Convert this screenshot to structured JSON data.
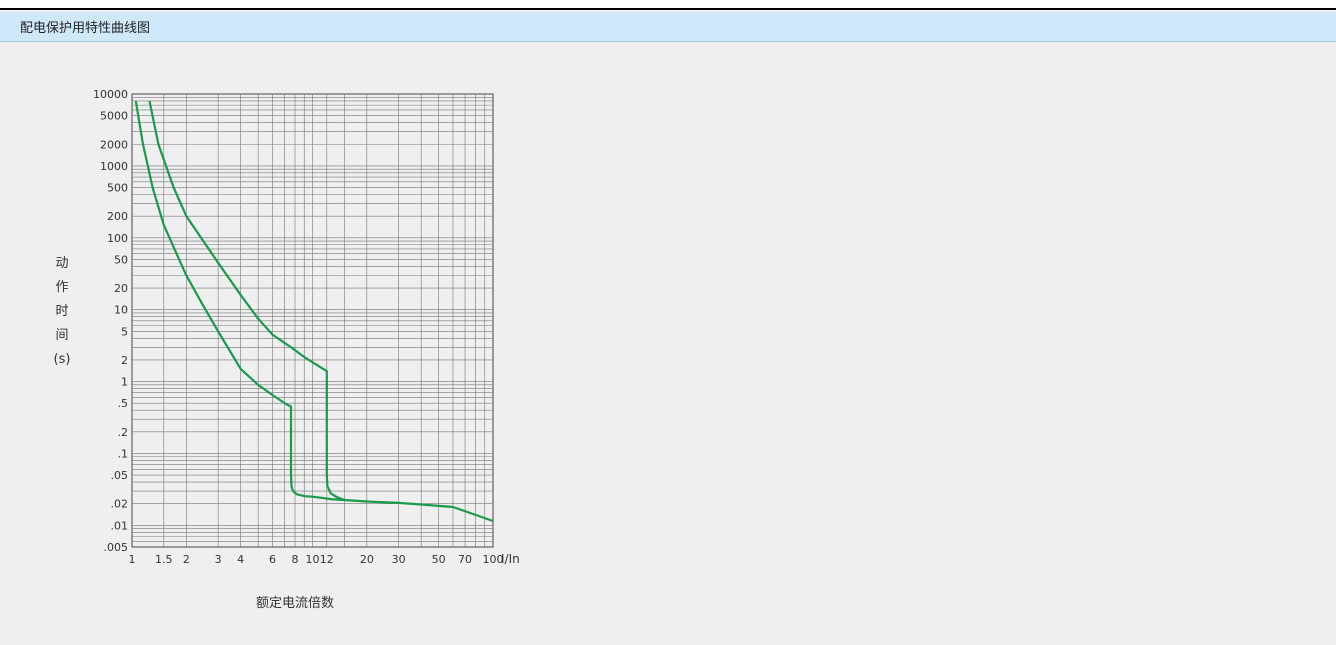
{
  "header": {
    "title": "配电保护用特性曲线图"
  },
  "chart_data": {
    "type": "line",
    "title": "配电保护用特性曲线图",
    "xlabel": "额定电流倍数",
    "ylabel_chars": [
      "动",
      "作",
      "时",
      "间",
      "(s)"
    ],
    "x_unit_label": "I/In",
    "x_scale": "log",
    "y_scale": "log",
    "xlim": [
      1,
      100
    ],
    "ylim": [
      0.005,
      10000
    ],
    "x_ticks": [
      1,
      1.5,
      2,
      3,
      4,
      6,
      8,
      10,
      12,
      20,
      30,
      50,
      70,
      100
    ],
    "x_tick_labels": [
      "1",
      "1.5",
      "2",
      "3",
      "4",
      "6",
      "8",
      "10",
      "12",
      "20",
      "30",
      "50",
      "70",
      "100"
    ],
    "y_ticks": [
      10000,
      5000,
      2000,
      1000,
      500,
      200,
      100,
      50,
      20,
      10,
      5,
      2,
      1,
      0.5,
      0.2,
      0.1,
      0.05,
      0.02,
      0.01,
      0.005
    ],
    "y_tick_labels": [
      "10000",
      "5000",
      "2000",
      "1000",
      "500",
      "200",
      "100",
      "50",
      "20",
      "10",
      "5",
      "2",
      "1",
      ".5",
      ".2",
      ".1",
      ".05",
      ".02",
      ".01",
      ".005"
    ],
    "grid": true,
    "line_color": "#1a9a4a",
    "series": [
      {
        "x": [
          1.05,
          1.15,
          1.3,
          1.5,
          2,
          2.5,
          3,
          4,
          5,
          6,
          7.2,
          7.6,
          7.6,
          7.65,
          7.8,
          8.2,
          9,
          10,
          13,
          15,
          20,
          30,
          40,
          60,
          100
        ],
        "y": [
          8000,
          2000,
          500,
          150,
          30,
          11,
          5,
          1.5,
          0.9,
          0.65,
          0.48,
          0.45,
          0.05,
          0.035,
          0.03,
          0.027,
          0.0255,
          0.025,
          0.023,
          0.0225,
          0.0215,
          0.0205,
          0.0195,
          0.018,
          0.0115
        ]
      },
      {
        "x": [
          1.25,
          1.4,
          1.7,
          2,
          3,
          4,
          5,
          6,
          7.6,
          9,
          11,
          12,
          12,
          12.1,
          12.6,
          13.5,
          15
        ],
        "y": [
          8000,
          2000,
          500,
          200,
          45,
          16,
          7.5,
          4.5,
          3,
          2.2,
          1.6,
          1.4,
          0.05,
          0.035,
          0.028,
          0.025,
          0.0225
        ]
      }
    ]
  }
}
